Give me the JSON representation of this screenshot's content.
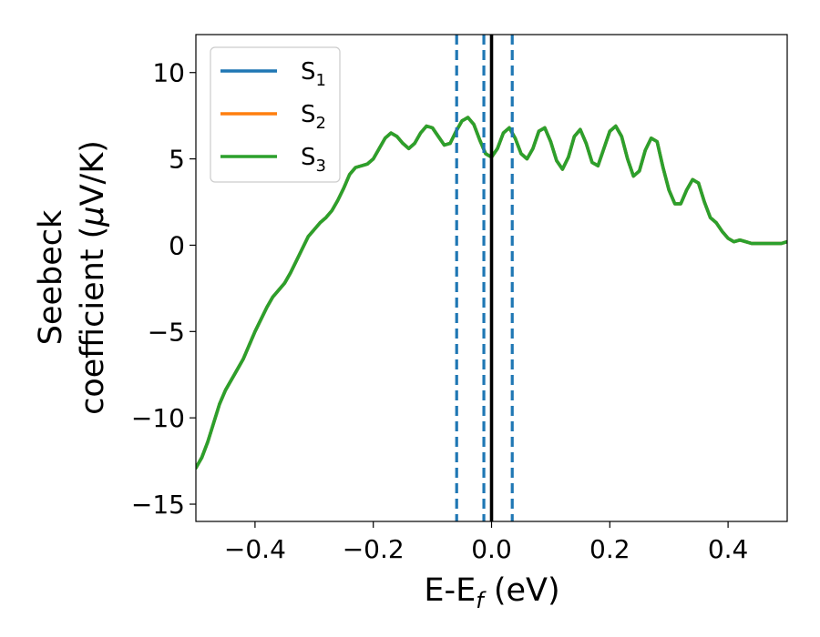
{
  "chart_data": {
    "type": "line",
    "xlabel": {
      "main": "E-E",
      "sub": "f",
      "unit": " (eV)"
    },
    "ylabel": {
      "line1": "Seebeck",
      "line2_pre": "coefficient  (",
      "line2_mu": "μ",
      "line2_post": "V/K)"
    },
    "xlim": [
      -0.5,
      0.5
    ],
    "ylim": [
      -16,
      12.2
    ],
    "xticks": [
      -0.4,
      -0.2,
      0.0,
      0.2,
      0.4
    ],
    "xtick_labels": [
      "−0.4",
      "−0.2",
      "0.0",
      "0.2",
      "0.4"
    ],
    "yticks": [
      -15,
      -10,
      -5,
      0,
      5,
      10
    ],
    "ytick_labels": [
      "−15",
      "−10",
      "−5",
      "0",
      "5",
      "10"
    ],
    "grid": false,
    "legend_position": "top-left",
    "colors": {
      "S1": "#1f77b4",
      "S2": "#ff7f0e",
      "S3": "#2ca02c",
      "fermi": "#000000",
      "dashed": "#1f77b4"
    },
    "series": [
      {
        "name": "S",
        "sub": "1",
        "color": "#1f77b4"
      },
      {
        "name": "S",
        "sub": "2",
        "color": "#ff7f0e"
      },
      {
        "name": "S",
        "sub": "3",
        "color": "#2ca02c",
        "x": [
          -0.5,
          -0.49,
          -0.48,
          -0.47,
          -0.46,
          -0.45,
          -0.44,
          -0.43,
          -0.42,
          -0.41,
          -0.4,
          -0.39,
          -0.38,
          -0.37,
          -0.36,
          -0.35,
          -0.34,
          -0.33,
          -0.32,
          -0.31,
          -0.3,
          -0.29,
          -0.28,
          -0.27,
          -0.26,
          -0.25,
          -0.24,
          -0.23,
          -0.22,
          -0.21,
          -0.2,
          -0.19,
          -0.18,
          -0.17,
          -0.16,
          -0.15,
          -0.14,
          -0.13,
          -0.12,
          -0.11,
          -0.1,
          -0.09,
          -0.08,
          -0.07,
          -0.06,
          -0.05,
          -0.04,
          -0.03,
          -0.02,
          -0.01,
          0.0,
          0.01,
          0.02,
          0.03,
          0.04,
          0.05,
          0.06,
          0.07,
          0.08,
          0.09,
          0.1,
          0.11,
          0.12,
          0.13,
          0.14,
          0.15,
          0.16,
          0.17,
          0.18,
          0.19,
          0.2,
          0.21,
          0.22,
          0.23,
          0.24,
          0.25,
          0.26,
          0.27,
          0.28,
          0.29,
          0.3,
          0.31,
          0.32,
          0.33,
          0.34,
          0.35,
          0.36,
          0.37,
          0.38,
          0.39,
          0.4,
          0.41,
          0.42,
          0.43,
          0.44,
          0.45,
          0.46,
          0.47,
          0.48,
          0.49,
          0.5
        ],
        "y": [
          -12.9,
          -12.3,
          -11.4,
          -10.3,
          -9.2,
          -8.4,
          -7.8,
          -7.2,
          -6.6,
          -5.8,
          -5.0,
          -4.3,
          -3.6,
          -3.0,
          -2.6,
          -2.2,
          -1.6,
          -0.9,
          -0.2,
          0.5,
          0.9,
          1.3,
          1.6,
          2.0,
          2.6,
          3.3,
          4.1,
          4.5,
          4.6,
          4.7,
          5.0,
          5.6,
          6.2,
          6.5,
          6.3,
          5.9,
          5.6,
          5.9,
          6.5,
          6.9,
          6.8,
          6.3,
          5.8,
          5.9,
          6.6,
          7.2,
          7.4,
          7.0,
          6.1,
          5.3,
          5.1,
          5.6,
          6.5,
          6.8,
          6.2,
          5.3,
          5.0,
          5.6,
          6.6,
          6.8,
          6.0,
          4.9,
          4.4,
          5.1,
          6.3,
          6.7,
          5.9,
          4.8,
          4.6,
          5.6,
          6.6,
          6.9,
          6.3,
          5.0,
          4.0,
          4.3,
          5.5,
          6.2,
          6.0,
          4.5,
          3.2,
          2.4,
          2.4,
          3.2,
          3.8,
          3.6,
          2.5,
          1.6,
          1.3,
          0.8,
          0.4,
          0.2,
          0.3,
          0.2,
          0.1,
          0.1,
          0.1,
          0.1,
          0.1,
          0.1,
          0.2
        ]
      }
    ],
    "vertical_lines": [
      {
        "x": 0.0,
        "style": "solid",
        "color": "#000000"
      },
      {
        "x": -0.059,
        "style": "dashed",
        "color": "#1f77b4"
      },
      {
        "x": -0.013,
        "style": "dashed",
        "color": "#1f77b4"
      },
      {
        "x": 0.035,
        "style": "dashed",
        "color": "#1f77b4"
      }
    ]
  }
}
